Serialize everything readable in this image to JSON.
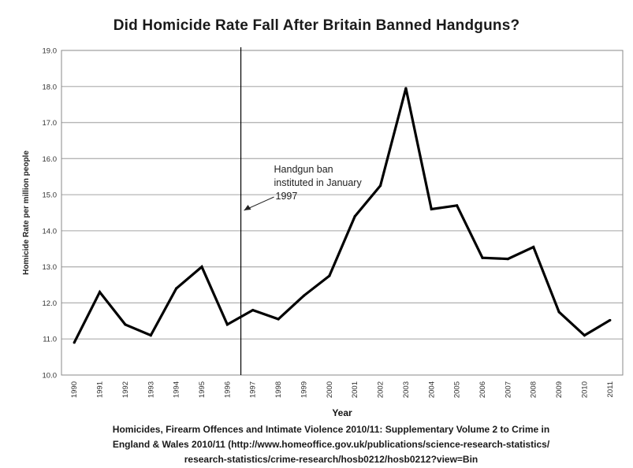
{
  "chart_data": {
    "type": "line",
    "title": "Did Homicide Rate Fall After Britain Banned Handguns?",
    "xlabel": "Year",
    "ylabel": "Homicide Rate per million people",
    "categories": [
      "1990",
      "1991",
      "1992",
      "1993",
      "1994",
      "1995",
      "1996",
      "1997",
      "1998",
      "1999",
      "2000",
      "2001",
      "2002",
      "2003",
      "2004",
      "2005",
      "2006",
      "2007",
      "2008",
      "2009",
      "2010",
      "2011"
    ],
    "series": [
      {
        "values": [
          10.9,
          12.3,
          11.4,
          11.1,
          12.4,
          13.0,
          11.4,
          11.8,
          11.55,
          12.2,
          12.75,
          14.4,
          15.25,
          17.95,
          14.6,
          14.7,
          13.25,
          13.22,
          13.55,
          11.75,
          11.1,
          11.52
        ]
      }
    ],
    "ylim": [
      10.0,
      19.0
    ],
    "yticks": [
      "10.0",
      "11.0",
      "12.0",
      "13.0",
      "14.0",
      "15.0",
      "16.0",
      "17.0",
      "18.0",
      "19.0"
    ],
    "grid": true,
    "line_color": "#000000",
    "annotation": {
      "lines": [
        "Handgun ban",
        "instituted in January",
        "1997"
      ],
      "marker_year": 1997,
      "arrow_target_value": 14.5
    },
    "source": {
      "lines": [
        "Homicides, Firearm Offences and Intimate Violence 2010/11: Supplementary Volume 2 to Crime in",
        "England & Wales 2010/11 (http://www.homeoffice.gov.uk/publications/science-research-statistics/",
        "research-statistics/crime-research/hosb0212/hosb0212?view=Bin"
      ]
    }
  }
}
